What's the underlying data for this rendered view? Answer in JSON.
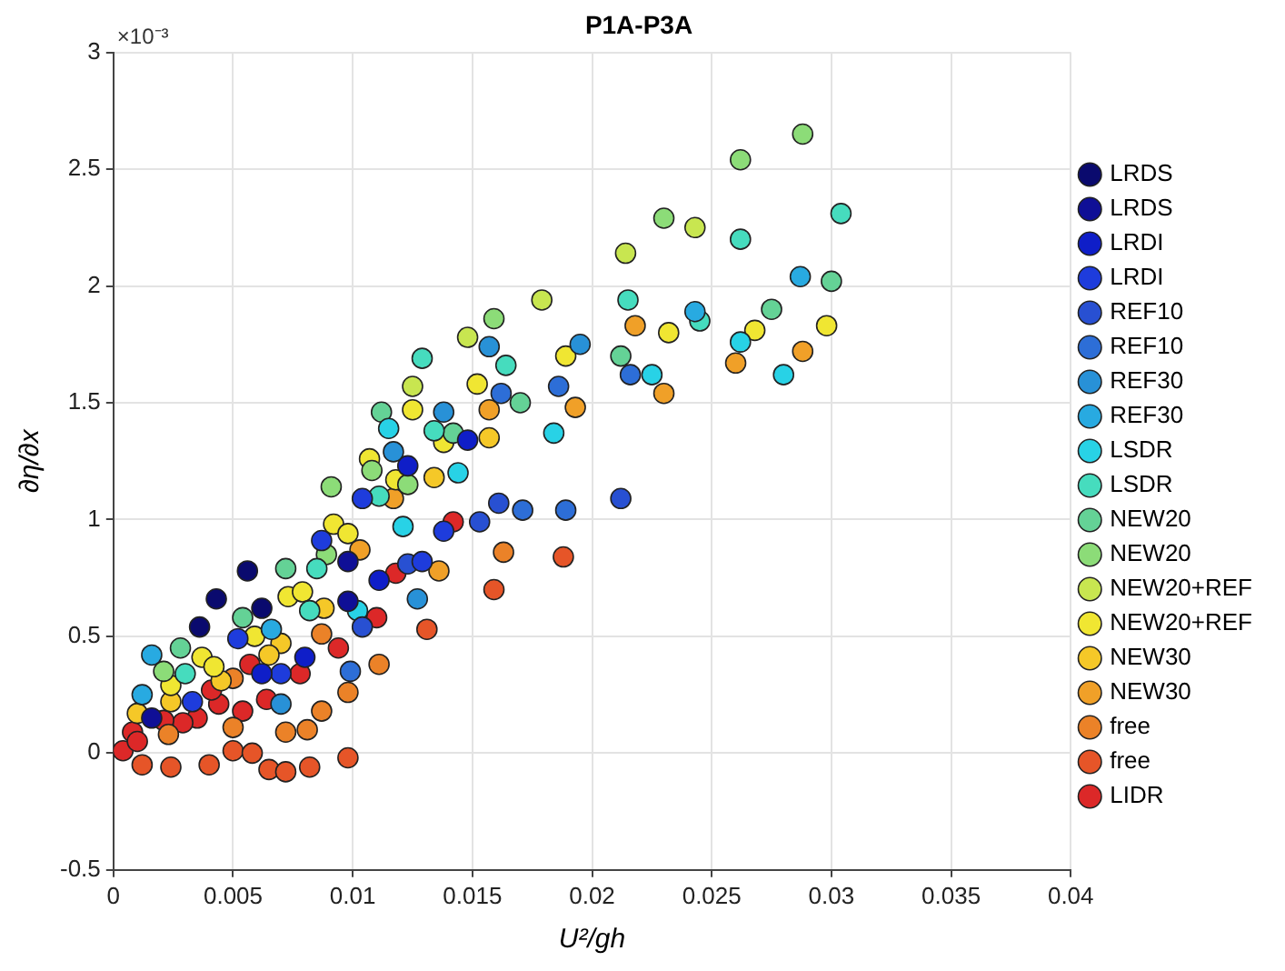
{
  "chart_data": {
    "type": "scatter",
    "title": "P1A-P3A",
    "xlabel": "U²/gh",
    "ylabel": "∂η/∂x",
    "annotations": [
      "×10⁻³"
    ],
    "xlim": [
      0,
      0.04
    ],
    "xticks": [
      0,
      0.005,
      0.01,
      0.015,
      0.02,
      0.025,
      0.03,
      0.035,
      0.04
    ],
    "ylim": [
      -0.5,
      3
    ],
    "yticks": [
      -0.5,
      0,
      0.5,
      1,
      1.5,
      2,
      2.5,
      3
    ],
    "grid": true,
    "legend": "right",
    "marker": "circle",
    "series": [
      {
        "name": "LRDS",
        "color": "#0a0a6e",
        "x": [
          0.0056,
          0.0043,
          0.0036,
          0.0062
        ],
        "values": [
          0.78,
          0.66,
          0.54,
          0.62
        ]
      },
      {
        "name": "LRDS",
        "color": "#0f0f96",
        "x": [
          0.0098,
          0.0098,
          0.0016
        ],
        "values": [
          0.82,
          0.65,
          0.15
        ]
      },
      {
        "name": "LRDI",
        "color": "#0f1ec8",
        "x": [
          0.0111,
          0.008,
          0.0062,
          0.0148,
          0.0123
        ],
        "values": [
          0.74,
          0.41,
          0.34,
          1.34,
          1.23
        ]
      },
      {
        "name": "LRDI",
        "color": "#1e3cdc",
        "x": [
          0.007,
          0.0052,
          0.0033,
          0.0104,
          0.0087,
          0.0138,
          0.0129
        ],
        "values": [
          0.34,
          0.49,
          0.22,
          1.09,
          0.91,
          0.95,
          0.82
        ]
      },
      {
        "name": "REF10",
        "color": "#2850d2",
        "x": [
          0.0123,
          0.0104,
          0.0161,
          0.0212,
          0.0153
        ],
        "values": [
          0.81,
          0.54,
          1.07,
          1.09,
          0.99
        ]
      },
      {
        "name": "REF10",
        "color": "#2d6ed7",
        "x": [
          0.0099,
          0.0171,
          0.0189,
          0.0162,
          0.0186,
          0.0216
        ],
        "values": [
          0.35,
          1.04,
          1.04,
          1.54,
          1.57,
          1.62
        ]
      },
      {
        "name": "REF30",
        "color": "#2891d7",
        "x": [
          0.0127,
          0.007,
          0.0138,
          0.0117,
          0.0157,
          0.0195
        ],
        "values": [
          0.66,
          0.21,
          1.46,
          1.29,
          1.74,
          1.75
        ]
      },
      {
        "name": "REF30",
        "color": "#28aae1",
        "x": [
          0.0012,
          0.0016,
          0.0066,
          0.0243,
          0.0287
        ],
        "values": [
          0.25,
          0.42,
          0.53,
          1.89,
          2.04
        ]
      },
      {
        "name": "LSDR",
        "color": "#28d2e6",
        "x": [
          0.0102,
          0.0115,
          0.0144,
          0.0121,
          0.0184,
          0.0225,
          0.0262,
          0.028
        ],
        "values": [
          0.61,
          1.39,
          1.2,
          0.97,
          1.37,
          1.62,
          1.76,
          1.62
        ]
      },
      {
        "name": "LSDR",
        "color": "#46dcbe",
        "x": [
          0.0085,
          0.0082,
          0.003,
          0.0129,
          0.0134,
          0.0111,
          0.0164,
          0.0215,
          0.0245,
          0.0262,
          0.0304
        ],
        "values": [
          0.79,
          0.61,
          0.34,
          1.69,
          1.38,
          1.1,
          1.66,
          1.94,
          1.85,
          2.2,
          2.31
        ]
      },
      {
        "name": "NEW20",
        "color": "#64d296",
        "x": [
          0.0072,
          0.0054,
          0.0028,
          0.0112,
          0.0142,
          0.017,
          0.0212,
          0.0275,
          0.03
        ],
        "values": [
          0.79,
          0.58,
          0.45,
          1.46,
          1.37,
          1.5,
          1.7,
          1.9,
          2.02
        ]
      },
      {
        "name": "NEW20",
        "color": "#8cdc78",
        "x": [
          0.0021,
          0.0108,
          0.0091,
          0.0123,
          0.0089,
          0.0159,
          0.023,
          0.0262,
          0.0288
        ],
        "values": [
          0.35,
          1.21,
          1.14,
          1.15,
          0.85,
          1.86,
          2.29,
          2.54,
          2.65
        ]
      },
      {
        "name": "NEW20+REF",
        "color": "#c8e650",
        "x": [
          0.0125,
          0.0179,
          0.0148,
          0.0243,
          0.0214
        ],
        "values": [
          1.57,
          1.94,
          1.78,
          2.25,
          2.14
        ]
      },
      {
        "name": "NEW20+REF",
        "color": "#f0e632",
        "x": [
          0.0073,
          0.0079,
          0.0059,
          0.0024,
          0.0037,
          0.0042,
          0.0125,
          0.0138,
          0.0152,
          0.0107,
          0.0118,
          0.0092,
          0.0098,
          0.0189,
          0.0232,
          0.0268,
          0.0298
        ],
        "values": [
          0.67,
          0.69,
          0.5,
          0.29,
          0.41,
          0.37,
          1.47,
          1.33,
          1.58,
          1.26,
          1.17,
          0.98,
          0.94,
          1.7,
          1.8,
          1.81,
          1.83
        ]
      },
      {
        "name": "NEW30",
        "color": "#f5c828",
        "x": [
          0.0088,
          0.0024,
          0.0045,
          0.007,
          0.0065,
          0.001,
          0.0157,
          0.0134
        ],
        "values": [
          0.62,
          0.22,
          0.31,
          0.47,
          0.42,
          0.17,
          1.35,
          1.18
        ]
      },
      {
        "name": "NEW30",
        "color": "#f0a028",
        "x": [
          0.0117,
          0.0103,
          0.0136,
          0.0157,
          0.0193,
          0.0218,
          0.023,
          0.026,
          0.0288
        ],
        "values": [
          1.09,
          0.87,
          0.78,
          1.47,
          1.48,
          1.83,
          1.54,
          1.67,
          1.72
        ]
      },
      {
        "name": "free",
        "color": "#eb8228",
        "x": [
          0.005,
          0.0087,
          0.0081,
          0.0072,
          0.005,
          0.0098,
          0.0111,
          0.0087,
          0.0023,
          0.0163
        ],
        "values": [
          0.32,
          0.18,
          0.1,
          0.09,
          0.11,
          0.26,
          0.38,
          0.51,
          0.08,
          0.86
        ]
      },
      {
        "name": "free",
        "color": "#e65528",
        "x": [
          0.005,
          0.0058,
          0.004,
          0.0024,
          0.0065,
          0.0072,
          0.0082,
          0.0098,
          0.0012,
          0.0188,
          0.0159,
          0.0131
        ],
        "values": [
          0.01,
          0,
          -0.05,
          -0.06,
          -0.07,
          -0.08,
          -0.06,
          -0.02,
          -0.05,
          0.84,
          0.7,
          0.53
        ]
      },
      {
        "name": "LIDR",
        "color": "#dc2828",
        "x": [
          0.0118,
          0.011,
          0.0094,
          0.0078,
          0.0057,
          0.0064,
          0.0044,
          0.0054,
          0.0041,
          0.0035,
          0.0029,
          0.0021,
          0.0008,
          0.0004,
          0.001,
          0.0142
        ],
        "values": [
          0.77,
          0.58,
          0.45,
          0.34,
          0.38,
          0.23,
          0.21,
          0.18,
          0.27,
          0.15,
          0.13,
          0.14,
          0.09,
          0.01,
          0.05,
          0.99
        ]
      }
    ]
  }
}
